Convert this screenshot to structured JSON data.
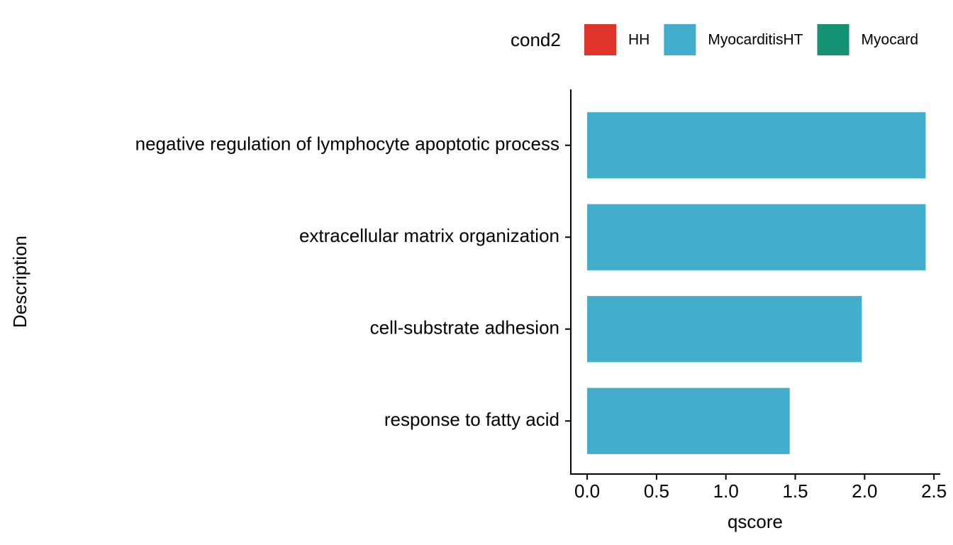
{
  "chart_data": {
    "type": "barh",
    "x_label": "qscore",
    "y_label": "Description",
    "legend_title": "cond2",
    "categories": [
      "negative regulation of lymphocyte apoptotic process",
      "extracellular matrix organization",
      "cell-substrate adhesion",
      "response to fatty acid"
    ],
    "series": [
      {
        "name": "HH",
        "color": "#e0352a",
        "values": [
          null,
          null,
          null,
          null
        ]
      },
      {
        "name": "MyocarditisHT",
        "color": "#42aecb",
        "values": [
          2.44,
          2.44,
          1.98,
          1.46
        ]
      },
      {
        "name": "Myocard",
        "color": "#139373",
        "values": [
          null,
          null,
          null,
          null
        ]
      }
    ],
    "xlim": [
      -0.118,
      2.54
    ],
    "xticks": [
      {
        "value": 0,
        "label": "0.0"
      },
      0.5,
      {
        "value": 1,
        "label": "1.0"
      },
      1.5,
      {
        "value": 2,
        "label": "2.0"
      },
      2.5
    ],
    "legend_position": "top",
    "grid": false
  }
}
